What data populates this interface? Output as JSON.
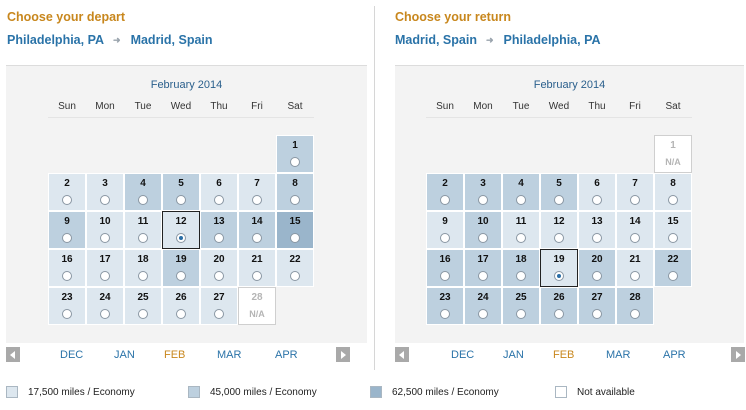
{
  "depart": {
    "title": "Choose your depart",
    "from": "Philadelphia, PA",
    "to": "Madrid, Spain",
    "month_title": "February 2014",
    "days_of_week": [
      "Sun",
      "Mon",
      "Tue",
      "Wed",
      "Thu",
      "Fri",
      "Sat"
    ],
    "selected_day": 12,
    "months": [
      "DEC",
      "JAN",
      "FEB",
      "MAR",
      "APR"
    ],
    "current_month": "FEB",
    "weeks": [
      [
        null,
        null,
        null,
        null,
        null,
        null,
        {
          "day": "1",
          "tier": 2
        }
      ],
      [
        {
          "day": "2",
          "tier": 1
        },
        {
          "day": "3",
          "tier": 1
        },
        {
          "day": "4",
          "tier": 2
        },
        {
          "day": "5",
          "tier": 2
        },
        {
          "day": "6",
          "tier": 1
        },
        {
          "day": "7",
          "tier": 1
        },
        {
          "day": "8",
          "tier": 2
        }
      ],
      [
        {
          "day": "9",
          "tier": 2
        },
        {
          "day": "10",
          "tier": 1
        },
        {
          "day": "11",
          "tier": 1
        },
        {
          "day": "12",
          "tier": 1,
          "selected": true
        },
        {
          "day": "13",
          "tier": 2
        },
        {
          "day": "14",
          "tier": 2
        },
        {
          "day": "15",
          "tier": 3
        }
      ],
      [
        {
          "day": "16",
          "tier": 1
        },
        {
          "day": "17",
          "tier": 1
        },
        {
          "day": "18",
          "tier": 1
        },
        {
          "day": "19",
          "tier": 2
        },
        {
          "day": "20",
          "tier": 1
        },
        {
          "day": "21",
          "tier": 1
        },
        {
          "day": "22",
          "tier": 1
        }
      ],
      [
        {
          "day": "23",
          "tier": 1
        },
        {
          "day": "24",
          "tier": 1
        },
        {
          "day": "25",
          "tier": 1
        },
        {
          "day": "26",
          "tier": 1
        },
        {
          "day": "27",
          "tier": 1
        },
        {
          "day": "28",
          "tier": 0,
          "na": "N/A"
        },
        null
      ]
    ]
  },
  "return": {
    "title": "Choose your return",
    "from": "Madrid, Spain",
    "to": "Philadelphia, PA",
    "month_title": "February 2014",
    "days_of_week": [
      "Sun",
      "Mon",
      "Tue",
      "Wed",
      "Thu",
      "Fri",
      "Sat"
    ],
    "selected_day": 19,
    "months": [
      "DEC",
      "JAN",
      "FEB",
      "MAR",
      "APR"
    ],
    "current_month": "FEB",
    "weeks": [
      [
        null,
        null,
        null,
        null,
        null,
        null,
        {
          "day": "1",
          "tier": 0,
          "na": "N/A"
        }
      ],
      [
        {
          "day": "2",
          "tier": 2
        },
        {
          "day": "3",
          "tier": 2
        },
        {
          "day": "4",
          "tier": 2
        },
        {
          "day": "5",
          "tier": 2
        },
        {
          "day": "6",
          "tier": 1
        },
        {
          "day": "7",
          "tier": 1
        },
        {
          "day": "8",
          "tier": 1
        }
      ],
      [
        {
          "day": "9",
          "tier": 1
        },
        {
          "day": "10",
          "tier": 2
        },
        {
          "day": "11",
          "tier": 1
        },
        {
          "day": "12",
          "tier": 1
        },
        {
          "day": "13",
          "tier": 1
        },
        {
          "day": "14",
          "tier": 1
        },
        {
          "day": "15",
          "tier": 1
        }
      ],
      [
        {
          "day": "16",
          "tier": 2
        },
        {
          "day": "17",
          "tier": 2
        },
        {
          "day": "18",
          "tier": 2
        },
        {
          "day": "19",
          "tier": 1,
          "selected": true
        },
        {
          "day": "20",
          "tier": 2
        },
        {
          "day": "21",
          "tier": 1
        },
        {
          "day": "22",
          "tier": 2
        }
      ],
      [
        {
          "day": "23",
          "tier": 2
        },
        {
          "day": "24",
          "tier": 2
        },
        {
          "day": "25",
          "tier": 2
        },
        {
          "day": "26",
          "tier": 2
        },
        {
          "day": "27",
          "tier": 2
        },
        {
          "day": "28",
          "tier": 2
        },
        null
      ]
    ]
  },
  "legend": [
    {
      "label": "17,500 miles / Economy",
      "color": "#dde7ef"
    },
    {
      "label": "45,000 miles / Economy",
      "color": "#bdd0df"
    },
    {
      "label": "62,500 miles / Economy",
      "color": "#9ab5cb"
    },
    {
      "label": "Not available",
      "color": "#ffffff"
    }
  ],
  "colors": {
    "accent_orange": "#c8871d",
    "link_blue": "#2a73a8"
  }
}
